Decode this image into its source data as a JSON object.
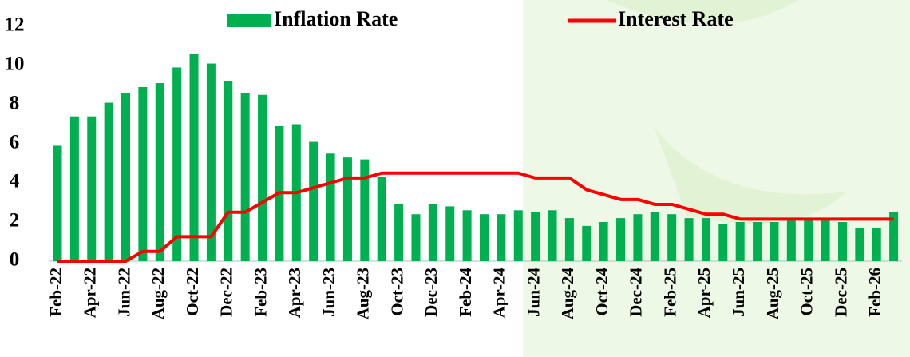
{
  "chart_data": {
    "type": "bar_line",
    "categories": [
      "Feb-22",
      null,
      "Apr-22",
      null,
      "Jun-22",
      null,
      "Aug-22",
      null,
      "Oct-22",
      null,
      "Dec-22",
      null,
      "Feb-23",
      null,
      "Apr-23",
      null,
      "Jun-23",
      null,
      "Aug-23",
      null,
      "Oct-23",
      null,
      "Dec-23",
      null,
      "Feb-24",
      null,
      "Apr-24",
      null,
      "Jun-24",
      null,
      "Aug-24",
      null,
      "Oct-24",
      null,
      "Dec-24",
      null,
      "Feb-25",
      null,
      "Apr-25",
      null,
      "Jun-25",
      null,
      "Aug-25",
      null,
      "Oct-25",
      null,
      "Dec-25",
      null,
      "Feb-26",
      null
    ],
    "series": [
      {
        "name": "Inflation Rate",
        "color": "#00b050",
        "kind": "bar",
        "values": [
          5.9,
          7.4,
          7.4,
          8.1,
          8.6,
          8.9,
          9.1,
          9.9,
          10.6,
          10.1,
          9.2,
          8.6,
          8.5,
          6.9,
          7.0,
          6.1,
          5.5,
          5.3,
          5.2,
          4.3,
          2.9,
          2.4,
          2.9,
          2.8,
          2.6,
          2.4,
          2.4,
          2.6,
          2.5,
          2.6,
          2.2,
          1.8,
          2.0,
          2.2,
          2.4,
          2.5,
          2.4,
          2.2,
          2.2,
          1.9,
          2.0,
          2.0,
          2.0,
          2.1,
          2.1,
          2.1,
          2.0,
          1.7,
          1.7,
          2.5
        ]
      },
      {
        "name": "Interest Rate",
        "color": "#ff0000",
        "kind": "line",
        "values": [
          0,
          0,
          0,
          0,
          0,
          0.5,
          0.5,
          1.25,
          1.25,
          1.25,
          2.5,
          2.5,
          3.0,
          3.5,
          3.5,
          3.75,
          4.0,
          4.25,
          4.25,
          4.5,
          4.5,
          4.5,
          4.5,
          4.5,
          4.5,
          4.5,
          4.5,
          4.5,
          4.25,
          4.25,
          4.25,
          3.65,
          3.4,
          3.15,
          3.15,
          2.9,
          2.9,
          2.65,
          2.4,
          2.4,
          2.15,
          2.15,
          2.15,
          2.15,
          2.15,
          2.15,
          2.15,
          2.15,
          2.15,
          2.15
        ]
      }
    ],
    "ylim": [
      0,
      12
    ],
    "yticks": [
      0,
      2,
      4,
      6,
      8,
      10,
      12
    ]
  }
}
